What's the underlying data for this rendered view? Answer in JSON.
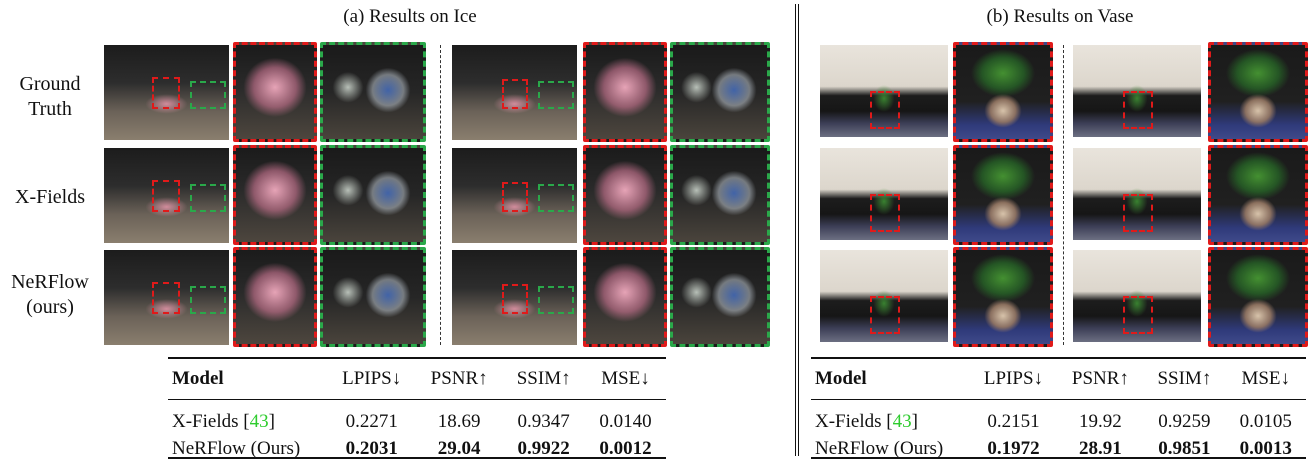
{
  "panels": {
    "ice_title": "(a) Results on Ice",
    "vase_title": "(b) Results on Vase"
  },
  "row_labels": {
    "ground_truth": [
      "Ground",
      "Truth"
    ],
    "xfields": [
      "X-Fields"
    ],
    "nerflow": [
      "NeRFlow",
      "(ours)"
    ]
  },
  "colors": {
    "crop_red": "#e01a1a",
    "crop_green": "#2aa84a",
    "citation": "#2ecc2e"
  },
  "tables": {
    "headers": [
      "Model",
      "LPIPS↓",
      "PSNR↑",
      "SSIM↑",
      "MSE↓"
    ],
    "ice": {
      "rows": [
        {
          "model": "X-Fields [",
          "cite": "43",
          "close": "]",
          "lpips": "0.2271",
          "psnr": "18.69",
          "ssim": "0.9347",
          "mse": "0.0140"
        },
        {
          "model": "NeRFlow (Ours)",
          "lpips": "0.2031",
          "psnr": "29.04",
          "ssim": "0.9922",
          "mse": "0.0012"
        }
      ]
    },
    "vase": {
      "rows": [
        {
          "model": "X-Fields [",
          "cite": "43",
          "close": "]",
          "lpips": "0.2151",
          "psnr": "19.92",
          "ssim": "0.9259",
          "mse": "0.0105"
        },
        {
          "model": "NeRFlow (Ours)",
          "lpips": "0.1972",
          "psnr": "28.91",
          "ssim": "0.9851",
          "mse": "0.0013"
        }
      ]
    }
  }
}
